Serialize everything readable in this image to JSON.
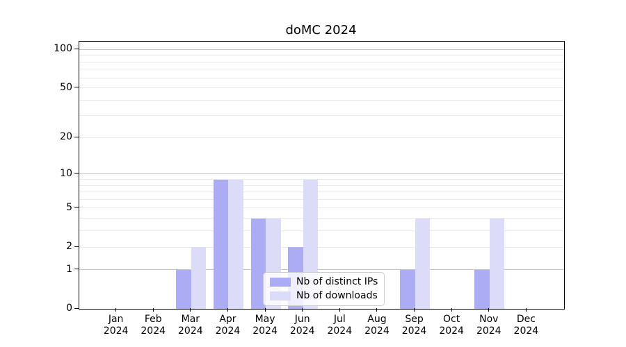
{
  "chart_data": {
    "type": "bar",
    "title": "doMC 2024",
    "categories": [
      "Jan 2024",
      "Feb 2024",
      "Mar 2024",
      "Apr 2024",
      "May 2024",
      "Jun 2024",
      "Jul 2024",
      "Aug 2024",
      "Sep 2024",
      "Oct 2024",
      "Nov 2024",
      "Dec 2024"
    ],
    "series": [
      {
        "name": "Nb of distinct IPs",
        "color": "#acacf4",
        "values": [
          0,
          0,
          1,
          9,
          4,
          2,
          0,
          0,
          1,
          0,
          1,
          0
        ]
      },
      {
        "name": "Nb of downloads",
        "color": "#dcdcf8",
        "values": [
          0,
          0,
          2,
          9,
          4,
          9,
          0,
          0,
          4,
          0,
          4,
          0
        ]
      }
    ],
    "xlabel": "",
    "ylabel": "",
    "y_scale": "log1p",
    "ylim": [
      0,
      115
    ],
    "y_ticks": [
      0,
      1,
      2,
      5,
      10,
      20,
      50,
      100
    ],
    "major_gridlines": [
      1,
      10,
      100
    ],
    "minor_gridlines": [
      2,
      3,
      4,
      5,
      6,
      7,
      8,
      9,
      20,
      30,
      40,
      50,
      60,
      70,
      80,
      90
    ],
    "grid": true,
    "legend_position": "lower center"
  },
  "colors": {
    "major_grid": "#c2c2c2",
    "minor_grid": "#e9e9e9",
    "axis": "#000000",
    "background": "#ffffff",
    "legend_border": "#cccccc"
  }
}
